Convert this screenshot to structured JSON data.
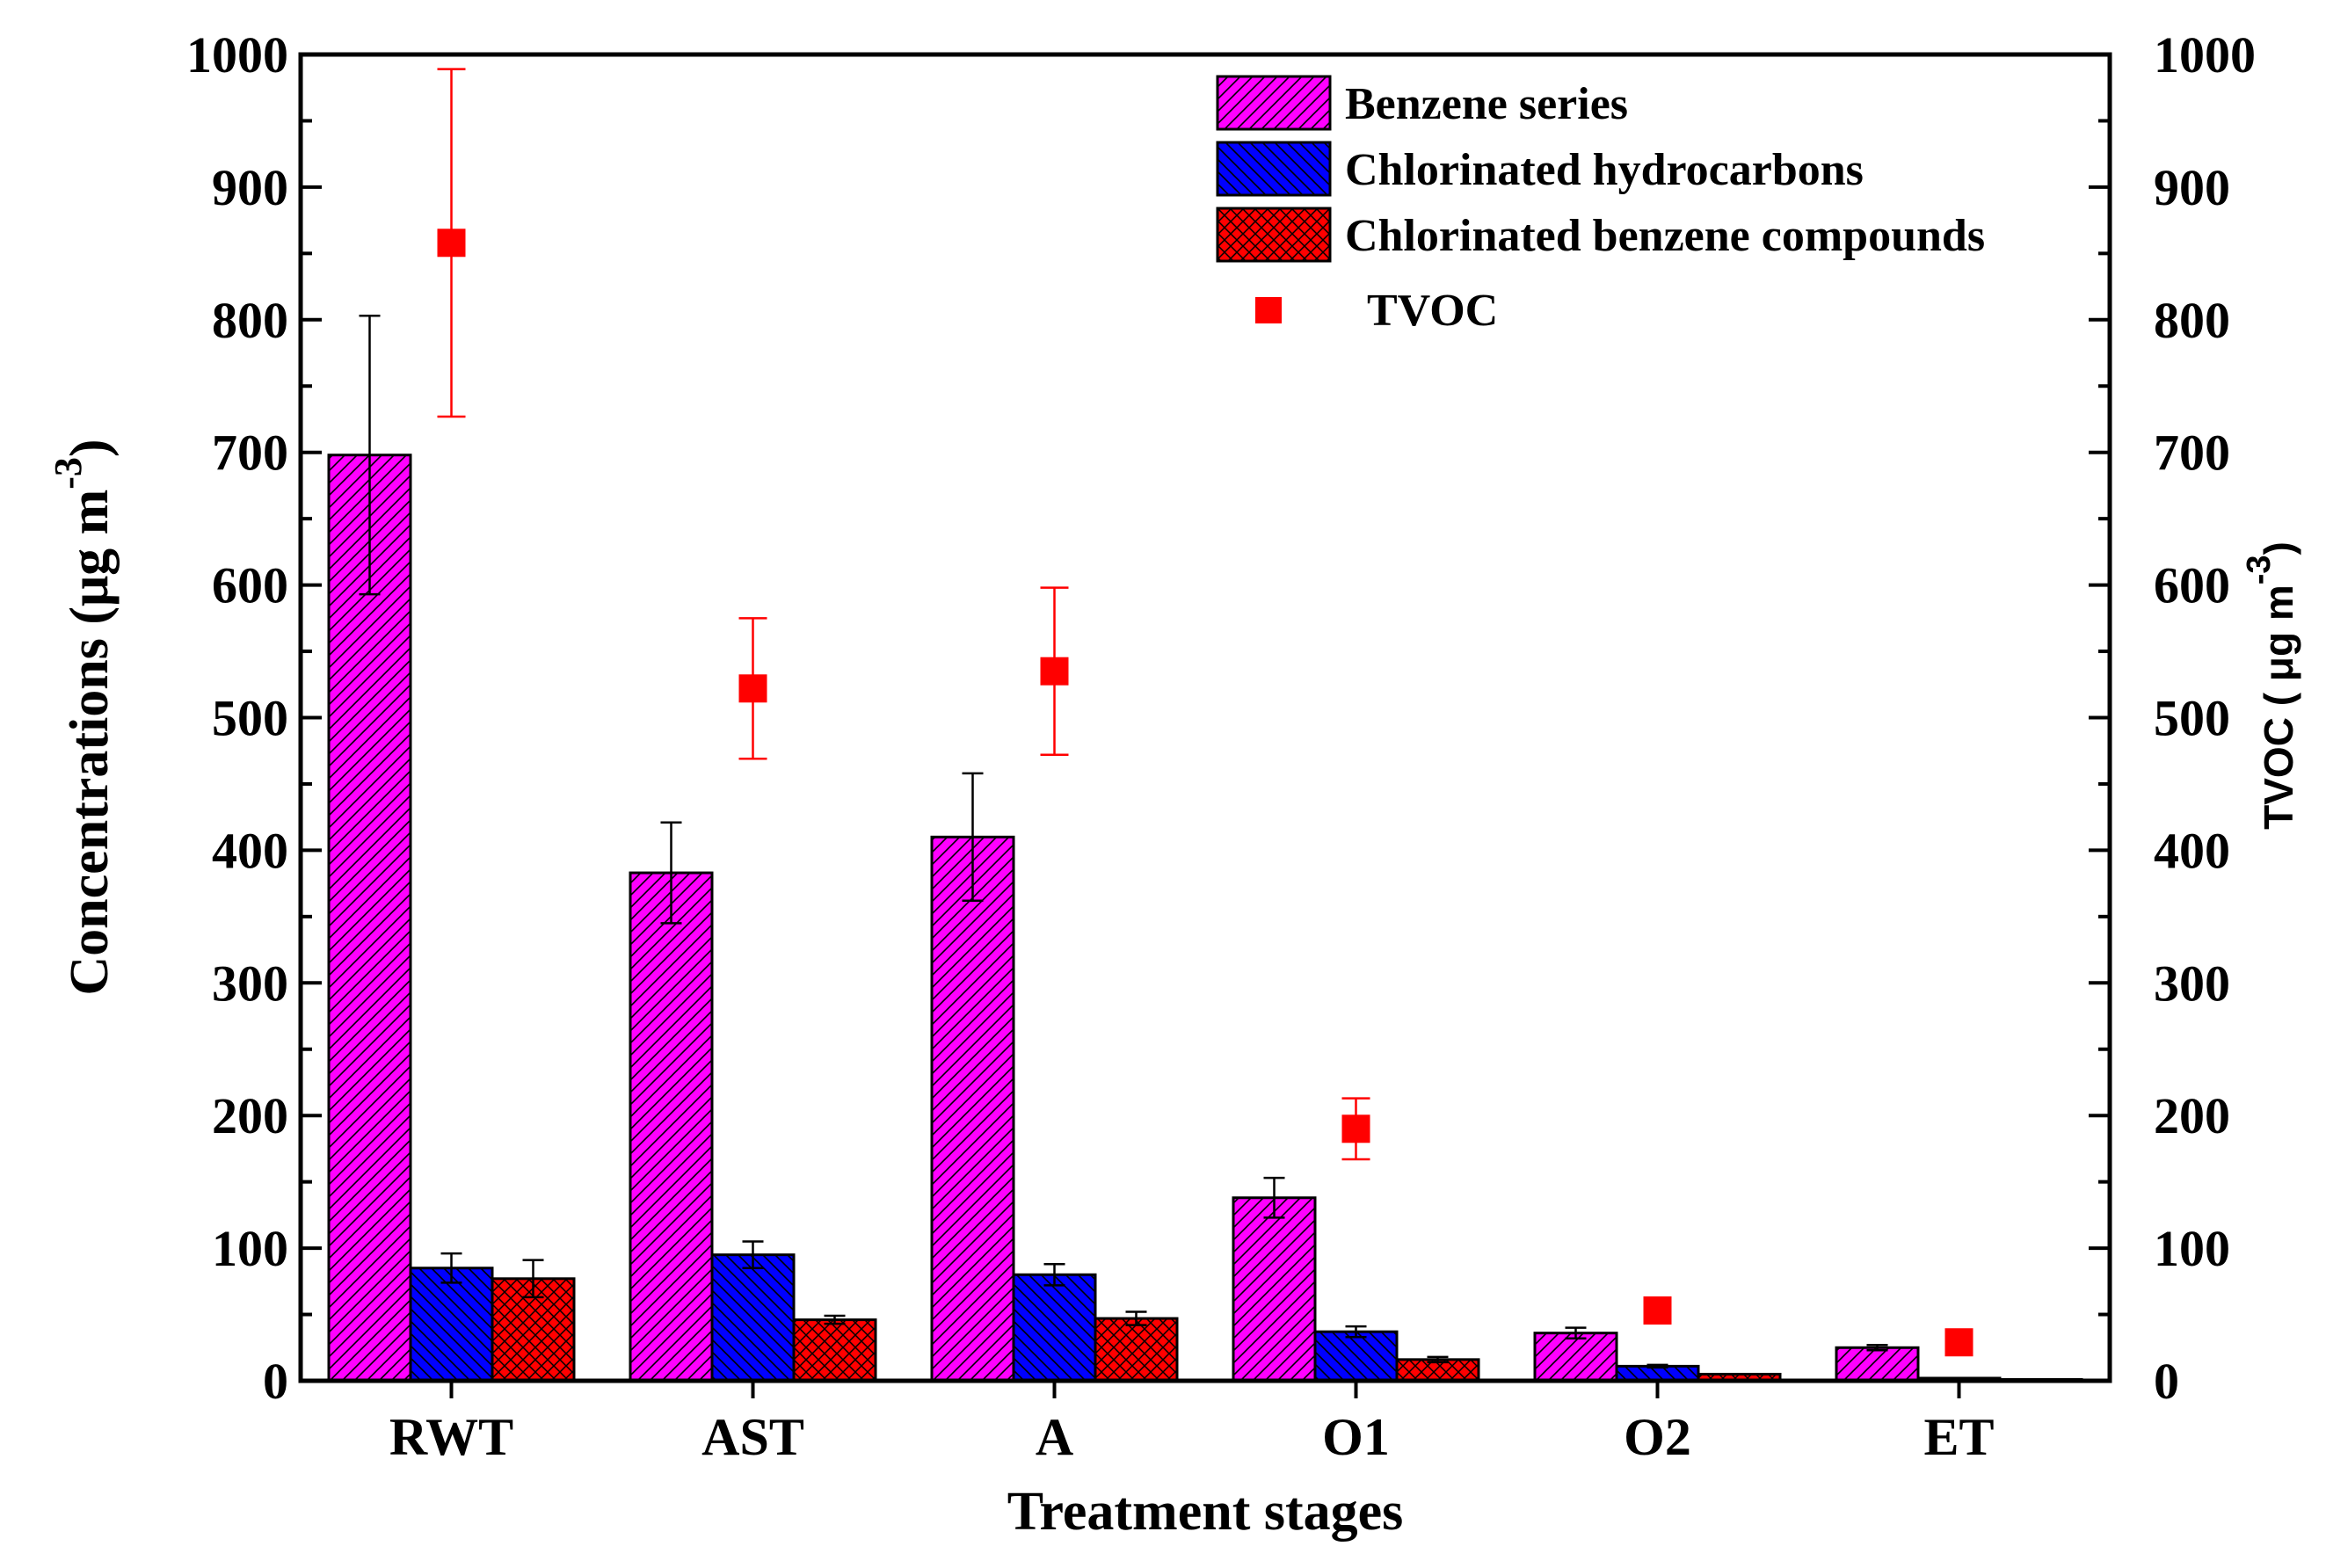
{
  "chart_data": {
    "type": "bar",
    "xlabel": "Treatment stages",
    "ylabel": "Concentrations (μg m",
    "ylabel_sup": "-3",
    "ylabel_close": ")",
    "y2label": "TVOC ( μg m",
    "y2label_sup": "-3",
    "y2label_close": ")",
    "ylim": [
      0,
      1000
    ],
    "y2lim": [
      0,
      1000
    ],
    "yticks": [
      0,
      100,
      200,
      300,
      400,
      500,
      600,
      700,
      800,
      900,
      1000
    ],
    "categories": [
      "RWT",
      "AST",
      "A",
      "O1",
      "O2",
      "ET"
    ],
    "series": [
      {
        "name": "Benzene series",
        "color": "#ff00ff",
        "pattern": "diagonal-hatch",
        "values": [
          698,
          383,
          410,
          138,
          36,
          25
        ],
        "errors": [
          105,
          38,
          48,
          15,
          4,
          2
        ]
      },
      {
        "name": "Chlorinated hydrocarbons",
        "color": "#0000ff",
        "pattern": "back-diagonal-hatch",
        "values": [
          85,
          95,
          80,
          37,
          11,
          2
        ],
        "errors": [
          11,
          10,
          8,
          4,
          1,
          0
        ]
      },
      {
        "name": "Chlorinated benzene compounds",
        "color": "#ff0000",
        "pattern": "crosshatch",
        "values": [
          77,
          46,
          47,
          16,
          5,
          1
        ],
        "errors": [
          14,
          3,
          5,
          2,
          0,
          0
        ]
      }
    ],
    "tvoc": {
      "name": "TVOC",
      "color": "#ff0000",
      "values": [
        858,
        522,
        535,
        190,
        53,
        29
      ],
      "errors": [
        131,
        53,
        63,
        23,
        0,
        0
      ]
    },
    "legend_position": "top-right"
  }
}
